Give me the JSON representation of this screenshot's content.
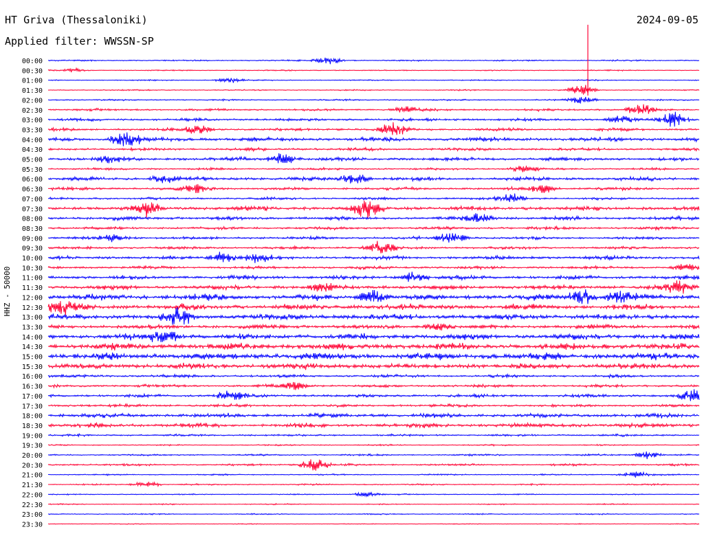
{
  "header": {
    "station": "HT Griva (Thessaloniki)",
    "date": "2024-09-05",
    "filter": "Applied filter: WWSSN-SP"
  },
  "chart_data": {
    "type": "line",
    "title": "HT Griva (Thessaloniki)",
    "ylabel": "HHZ - 50000",
    "trace_colors": [
      "#0000ff",
      "#ff0033"
    ],
    "rows": [
      {
        "label": "00:00",
        "color": "#0000ff",
        "amp": 1.0,
        "events": [
          [
            0.43,
            8
          ]
        ]
      },
      {
        "label": "00:30",
        "color": "#ff0033",
        "amp": 0.8,
        "events": [
          [
            0.04,
            3
          ]
        ]
      },
      {
        "label": "01:00",
        "color": "#0000ff",
        "amp": 0.8,
        "events": [
          [
            0.28,
            4
          ]
        ]
      },
      {
        "label": "01:30",
        "color": "#ff0033",
        "amp": 0.8,
        "events": [
          [
            0.82,
            10
          ]
        ]
      },
      {
        "label": "02:00",
        "color": "#0000ff",
        "amp": 1.0,
        "events": [
          [
            0.82,
            6
          ]
        ]
      },
      {
        "label": "02:30",
        "color": "#ff0033",
        "amp": 1.6,
        "events": [
          [
            0.55,
            6
          ],
          [
            0.91,
            10
          ]
        ]
      },
      {
        "label": "03:00",
        "color": "#0000ff",
        "amp": 2.0,
        "events": [
          [
            0.96,
            14
          ],
          [
            0.88,
            6
          ]
        ]
      },
      {
        "label": "03:30",
        "color": "#ff0033",
        "amp": 2.0,
        "events": [
          [
            0.53,
            12
          ],
          [
            0.23,
            8
          ]
        ]
      },
      {
        "label": "04:00",
        "color": "#0000ff",
        "amp": 3.0,
        "events": [
          [
            0.12,
            16
          ]
        ]
      },
      {
        "label": "04:30",
        "color": "#ff0033",
        "amp": 2.0,
        "events": []
      },
      {
        "label": "05:00",
        "color": "#0000ff",
        "amp": 2.5,
        "events": [
          [
            0.36,
            10
          ],
          [
            0.09,
            6
          ]
        ]
      },
      {
        "label": "05:30",
        "color": "#ff0033",
        "amp": 1.5,
        "events": [
          [
            0.73,
            6
          ]
        ]
      },
      {
        "label": "06:00",
        "color": "#0000ff",
        "amp": 2.5,
        "events": [
          [
            0.47,
            10
          ],
          [
            0.18,
            6
          ]
        ]
      },
      {
        "label": "06:30",
        "color": "#ff0033",
        "amp": 2.0,
        "events": [
          [
            0.23,
            9
          ],
          [
            0.76,
            8
          ]
        ]
      },
      {
        "label": "07:00",
        "color": "#0000ff",
        "amp": 1.8,
        "events": [
          [
            0.71,
            10
          ]
        ]
      },
      {
        "label": "07:30",
        "color": "#ff0033",
        "amp": 3.0,
        "events": [
          [
            0.49,
            16
          ],
          [
            0.15,
            10
          ]
        ]
      },
      {
        "label": "08:00",
        "color": "#0000ff",
        "amp": 2.5,
        "events": [
          [
            0.66,
            8
          ]
        ]
      },
      {
        "label": "08:30",
        "color": "#ff0033",
        "amp": 2.0,
        "events": []
      },
      {
        "label": "09:00",
        "color": "#0000ff",
        "amp": 2.0,
        "events": [
          [
            0.62,
            9
          ],
          [
            0.1,
            6
          ]
        ]
      },
      {
        "label": "09:30",
        "color": "#ff0033",
        "amp": 2.0,
        "events": [
          [
            0.51,
            12
          ]
        ]
      },
      {
        "label": "10:00",
        "color": "#0000ff",
        "amp": 2.5,
        "events": [
          [
            0.27,
            10
          ],
          [
            0.32,
            8
          ]
        ]
      },
      {
        "label": "10:30",
        "color": "#ff0033",
        "amp": 2.0,
        "events": [
          [
            0.98,
            6
          ]
        ]
      },
      {
        "label": "11:00",
        "color": "#0000ff",
        "amp": 2.8,
        "events": [
          [
            0.56,
            8
          ]
        ]
      },
      {
        "label": "11:30",
        "color": "#ff0033",
        "amp": 3.0,
        "events": [
          [
            0.97,
            10
          ],
          [
            0.42,
            6
          ]
        ]
      },
      {
        "label": "12:00",
        "color": "#0000ff",
        "amp": 4.0,
        "events": [
          [
            0.5,
            12
          ],
          [
            0.82,
            14
          ],
          [
            0.88,
            12
          ]
        ]
      },
      {
        "label": "12:30",
        "color": "#ff0033",
        "amp": 4.0,
        "events": [
          [
            0.02,
            12
          ]
        ]
      },
      {
        "label": "13:00",
        "color": "#0000ff",
        "amp": 4.0,
        "events": [
          [
            0.2,
            14
          ]
        ]
      },
      {
        "label": "13:30",
        "color": "#ff0033",
        "amp": 3.0,
        "events": [
          [
            0.6,
            6
          ]
        ]
      },
      {
        "label": "14:00",
        "color": "#0000ff",
        "amp": 4.0,
        "events": [
          [
            0.18,
            12
          ]
        ]
      },
      {
        "label": "14:30",
        "color": "#ff0033",
        "amp": 4.5,
        "events": []
      },
      {
        "label": "15:00",
        "color": "#0000ff",
        "amp": 5.0,
        "events": []
      },
      {
        "label": "15:30",
        "color": "#ff0033",
        "amp": 4.0,
        "events": []
      },
      {
        "label": "16:00",
        "color": "#0000ff",
        "amp": 2.0,
        "events": []
      },
      {
        "label": "16:30",
        "color": "#ff0033",
        "amp": 2.0,
        "events": [
          [
            0.38,
            8
          ]
        ]
      },
      {
        "label": "17:00",
        "color": "#0000ff",
        "amp": 2.2,
        "events": [
          [
            0.28,
            10
          ],
          [
            0.99,
            12
          ]
        ]
      },
      {
        "label": "17:30",
        "color": "#ff0033",
        "amp": 2.0,
        "events": []
      },
      {
        "label": "18:00",
        "color": "#0000ff",
        "amp": 3.0,
        "events": []
      },
      {
        "label": "18:30",
        "color": "#ff0033",
        "amp": 3.0,
        "events": []
      },
      {
        "label": "19:00",
        "color": "#0000ff",
        "amp": 1.5,
        "events": []
      },
      {
        "label": "19:30",
        "color": "#ff0033",
        "amp": 1.0,
        "events": []
      },
      {
        "label": "20:00",
        "color": "#0000ff",
        "amp": 1.2,
        "events": [
          [
            0.92,
            6
          ]
        ]
      },
      {
        "label": "20:30",
        "color": "#ff0033",
        "amp": 1.5,
        "events": [
          [
            0.41,
            12
          ]
        ]
      },
      {
        "label": "21:00",
        "color": "#0000ff",
        "amp": 1.0,
        "events": [
          [
            0.9,
            6
          ]
        ]
      },
      {
        "label": "21:30",
        "color": "#ff0033",
        "amp": 1.0,
        "events": [
          [
            0.15,
            6
          ]
        ]
      },
      {
        "label": "22:00",
        "color": "#0000ff",
        "amp": 0.8,
        "events": [
          [
            0.49,
            4
          ]
        ]
      },
      {
        "label": "22:30",
        "color": "#ff0033",
        "amp": 0.8,
        "events": []
      },
      {
        "label": "23:00",
        "color": "#0000ff",
        "amp": 0.8,
        "events": []
      },
      {
        "label": "23:30",
        "color": "#ff0033",
        "amp": 0.6,
        "events": []
      }
    ],
    "spikes": [
      {
        "row": "01:30",
        "x": 0.829,
        "height": 95
      }
    ]
  }
}
